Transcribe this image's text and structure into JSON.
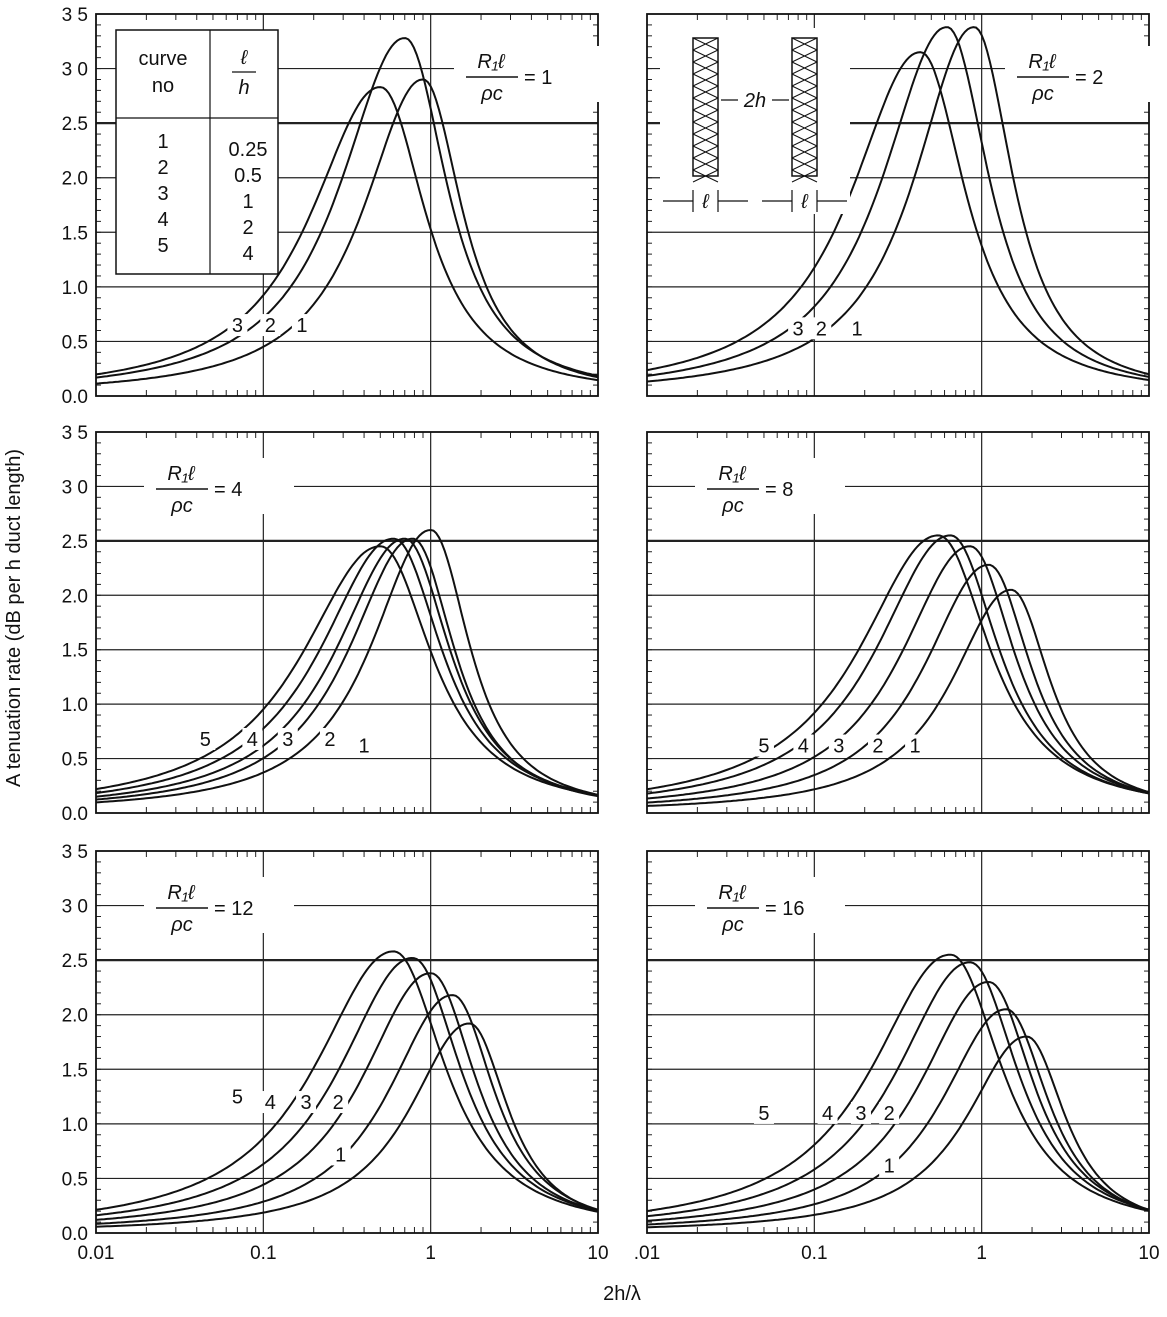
{
  "chart_data": {
    "type": "line",
    "xlabel": "2h/λ",
    "ylabel": "A tenuation rate (dB per h duct length)",
    "x_scale": "log",
    "xlim": [
      0.01,
      10
    ],
    "ylim": [
      0,
      3.5
    ],
    "x_ticks": [
      "0.01",
      "0.1",
      "1",
      "10"
    ],
    "x_ticks_right": [
      ".01",
      "0.1",
      "1",
      "10"
    ],
    "y_ticks": [
      "0.0",
      "0.5",
      "1.0",
      "1.5",
      "2.0",
      "2.5",
      "3 0",
      "3 5"
    ],
    "legend_table": {
      "col1_header": [
        "curve",
        "no"
      ],
      "col2_header": [
        "ℓ",
        "h"
      ],
      "curve_no": [
        "1",
        "2",
        "3",
        "4",
        "5"
      ],
      "l_over_h": [
        "0.25",
        "0.5",
        "1",
        "2",
        "4"
      ]
    },
    "inset": {
      "gap_label": "2h",
      "thickness_label": "ℓ"
    },
    "param_label": {
      "numerator": "R₁ℓ",
      "denominator": "ρc"
    },
    "panels": [
      {
        "param_value": "1",
        "series": [
          {
            "curve": "1",
            "peak_x": 0.9,
            "peak_y": 2.9,
            "label_x": 0.17,
            "label_y": 0.65
          },
          {
            "curve": "2",
            "peak_x": 0.7,
            "peak_y": 3.28,
            "label_x": 0.11,
            "label_y": 0.65
          },
          {
            "curve": "3",
            "peak_x": 0.5,
            "peak_y": 2.83,
            "label_x": 0.07,
            "label_y": 0.65
          }
        ]
      },
      {
        "param_value": "2",
        "series": [
          {
            "curve": "1",
            "peak_x": 0.9,
            "peak_y": 3.38,
            "label_x": 0.18,
            "label_y": 0.62
          },
          {
            "curve": "2",
            "peak_x": 0.62,
            "peak_y": 3.38,
            "label_x": 0.11,
            "label_y": 0.62
          },
          {
            "curve": "3",
            "peak_x": 0.43,
            "peak_y": 3.15,
            "label_x": 0.08,
            "label_y": 0.62
          }
        ]
      },
      {
        "param_value": "4",
        "series": [
          {
            "curve": "1",
            "peak_x": 1.0,
            "peak_y": 2.6,
            "label_x": 0.4,
            "label_y": 0.62
          },
          {
            "curve": "2",
            "peak_x": 0.78,
            "peak_y": 2.52,
            "label_x": 0.25,
            "label_y": 0.68
          },
          {
            "curve": "3",
            "peak_x": 0.7,
            "peak_y": 2.52,
            "label_x": 0.14,
            "label_y": 0.68
          },
          {
            "curve": "4",
            "peak_x": 0.6,
            "peak_y": 2.52,
            "label_x": 0.086,
            "label_y": 0.68
          },
          {
            "curve": "5",
            "peak_x": 0.5,
            "peak_y": 2.45,
            "label_x": 0.045,
            "label_y": 0.68
          }
        ]
      },
      {
        "param_value": "8",
        "series": [
          {
            "curve": "1",
            "peak_x": 1.5,
            "peak_y": 2.05,
            "label_x": 0.4,
            "label_y": 0.62
          },
          {
            "curve": "2",
            "peak_x": 1.1,
            "peak_y": 2.28,
            "label_x": 0.24,
            "label_y": 0.62
          },
          {
            "curve": "3",
            "peak_x": 0.85,
            "peak_y": 2.45,
            "label_x": 0.14,
            "label_y": 0.62
          },
          {
            "curve": "4",
            "peak_x": 0.65,
            "peak_y": 2.55,
            "label_x": 0.086,
            "label_y": 0.62
          },
          {
            "curve": "5",
            "peak_x": 0.55,
            "peak_y": 2.55,
            "label_x": 0.05,
            "label_y": 0.62
          }
        ]
      },
      {
        "param_value": "12",
        "series": [
          {
            "curve": "1",
            "peak_x": 1.7,
            "peak_y": 1.92,
            "label_x": 0.29,
            "label_y": 0.72
          },
          {
            "curve": "2",
            "peak_x": 1.35,
            "peak_y": 2.18,
            "label_x": 0.28,
            "label_y": 1.2
          },
          {
            "curve": "3",
            "peak_x": 1.0,
            "peak_y": 2.38,
            "label_x": 0.18,
            "label_y": 1.2
          },
          {
            "curve": "4",
            "peak_x": 0.78,
            "peak_y": 2.52,
            "label_x": 0.11,
            "label_y": 1.2
          },
          {
            "curve": "5",
            "peak_x": 0.6,
            "peak_y": 2.58,
            "label_x": 0.07,
            "label_y": 1.25
          }
        ]
      },
      {
        "param_value": "16",
        "series": [
          {
            "curve": "1",
            "peak_x": 1.85,
            "peak_y": 1.8,
            "label_x": 0.28,
            "label_y": 0.62
          },
          {
            "curve": "2",
            "peak_x": 1.4,
            "peak_y": 2.05,
            "label_x": 0.28,
            "label_y": 1.1
          },
          {
            "curve": "3",
            "peak_x": 1.1,
            "peak_y": 2.3,
            "label_x": 0.19,
            "label_y": 1.1
          },
          {
            "curve": "4",
            "peak_x": 0.85,
            "peak_y": 2.48,
            "label_x": 0.12,
            "label_y": 1.1
          },
          {
            "curve": "5",
            "peak_x": 0.65,
            "peak_y": 2.55,
            "label_x": 0.05,
            "label_y": 1.1
          }
        ]
      }
    ]
  }
}
